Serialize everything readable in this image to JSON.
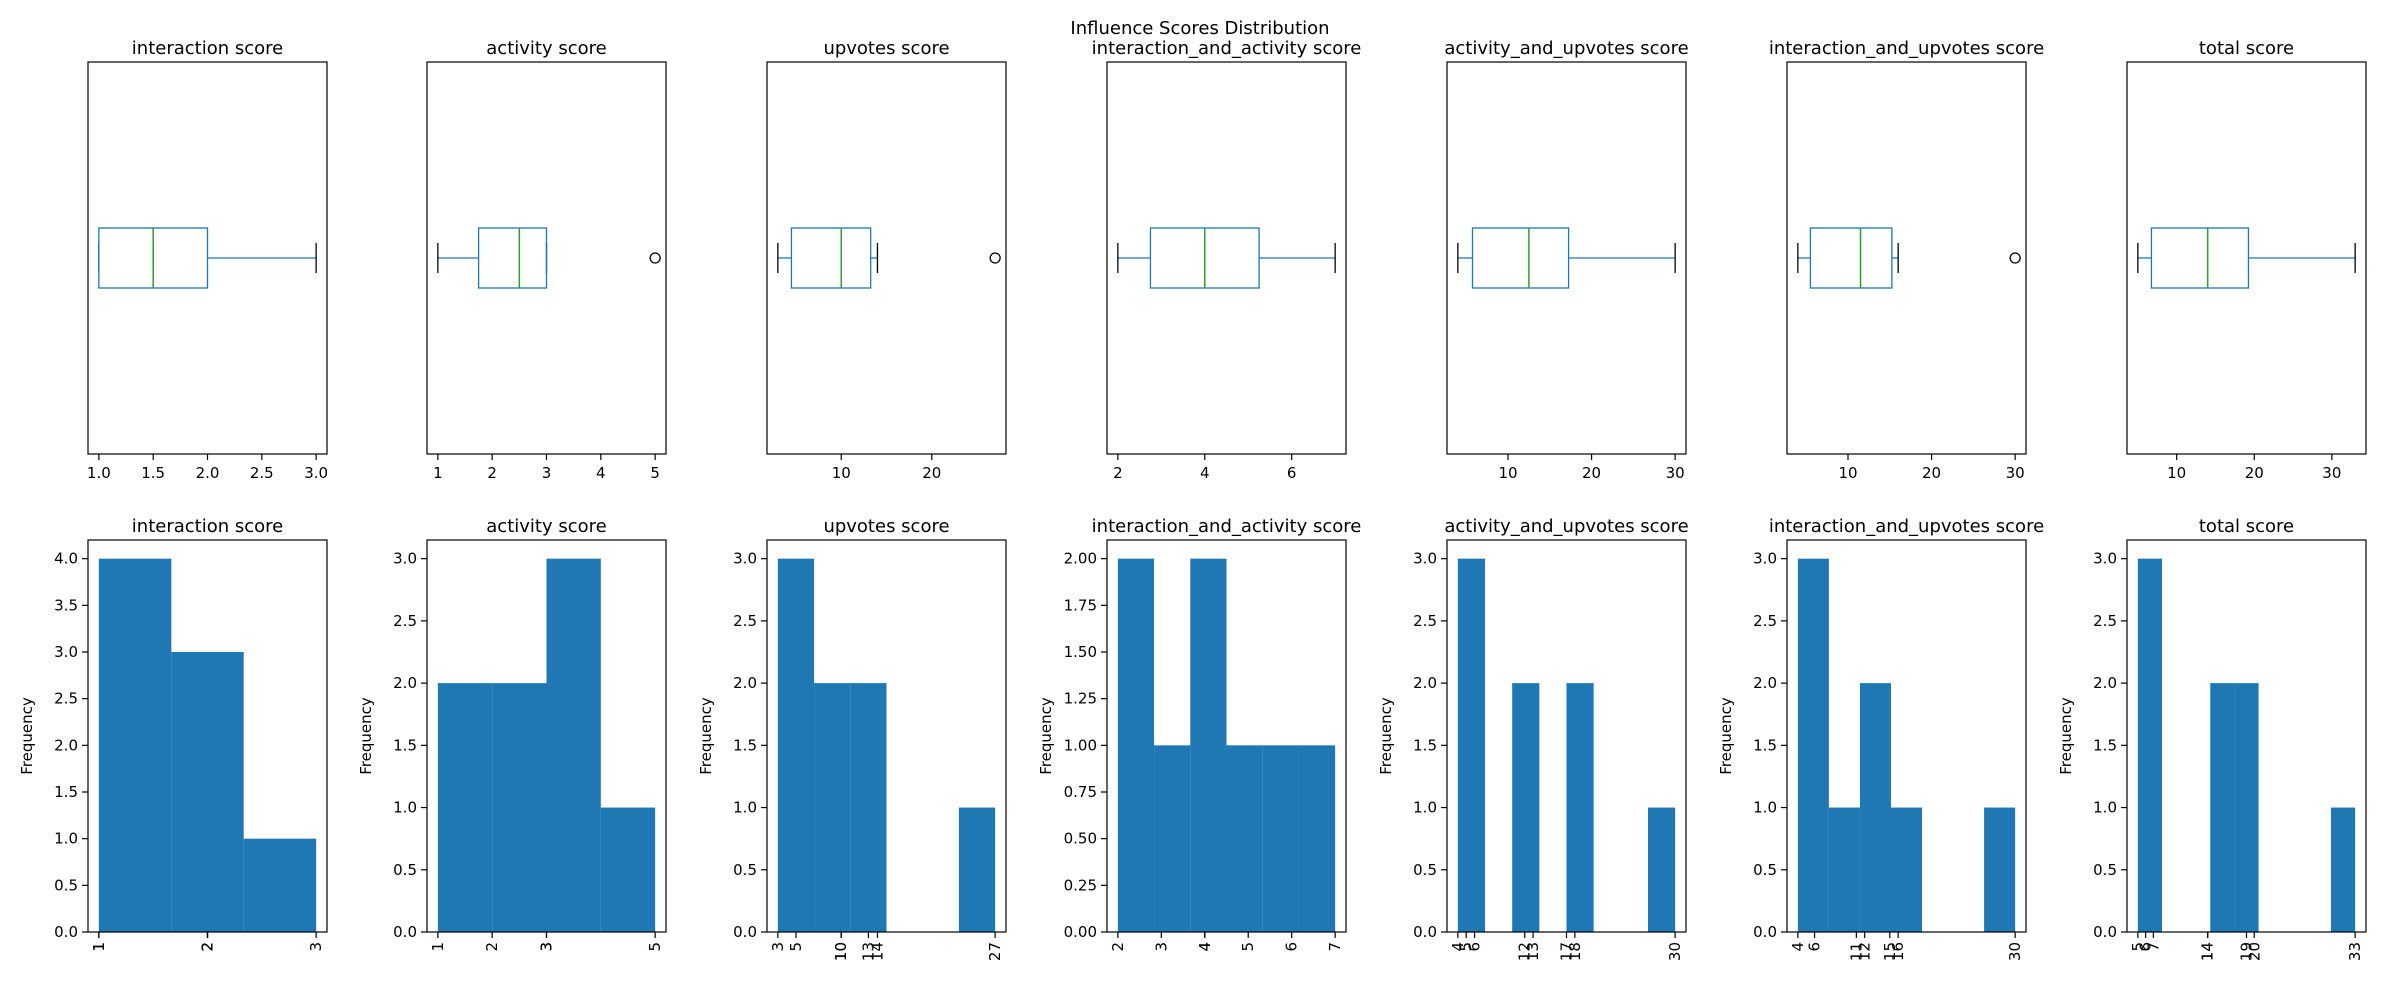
{
  "title": "Influence Scores Distribution",
  "colors": {
    "box": "#1f77b4",
    "median": "#2ca02c",
    "hist": "#1f77b4"
  },
  "chart_data": [
    {
      "type": "box",
      "title": "interaction score",
      "orientation": "horizontal",
      "min": 1,
      "q1": 1,
      "median": 1.5,
      "q3": 2,
      "max": 3,
      "outliers": [],
      "xlim": [
        0.9,
        3.1
      ],
      "xticks": [
        "1.0",
        "1.5",
        "2.0",
        "2.5",
        "3.0"
      ],
      "xtick_values": [
        1.0,
        1.5,
        2.0,
        2.5,
        3.0
      ]
    },
    {
      "type": "box",
      "title": "activity score",
      "orientation": "horizontal",
      "min": 1,
      "q1": 1.75,
      "median": 2.5,
      "q3": 3,
      "max": 3,
      "outliers": [
        5
      ],
      "xlim": [
        0.8,
        5.2
      ],
      "xticks": [
        "1",
        "2",
        "3",
        "4",
        "5"
      ],
      "xtick_values": [
        1,
        2,
        3,
        4,
        5
      ]
    },
    {
      "type": "box",
      "title": "upvotes score",
      "orientation": "horizontal",
      "min": 3,
      "q1": 4.5,
      "median": 10,
      "q3": 13.25,
      "max": 14,
      "outliers": [
        27
      ],
      "xlim": [
        1.8,
        28.2
      ],
      "xticks": [
        "10",
        "20"
      ],
      "xtick_values": [
        10,
        20
      ]
    },
    {
      "type": "box",
      "title": "interaction_and_activity score",
      "orientation": "horizontal",
      "min": 2,
      "q1": 2.75,
      "median": 4,
      "q3": 5.25,
      "max": 7,
      "outliers": [],
      "xlim": [
        1.75,
        7.25
      ],
      "xticks": [
        "2",
        "4",
        "6"
      ],
      "xtick_values": [
        2,
        4,
        6
      ]
    },
    {
      "type": "box",
      "title": "activity_and_upvotes score",
      "orientation": "horizontal",
      "min": 4,
      "q1": 5.75,
      "median": 12.5,
      "q3": 17.25,
      "max": 30,
      "outliers": [],
      "xlim": [
        2.7,
        31.3
      ],
      "xticks": [
        "10",
        "20",
        "30"
      ],
      "xtick_values": [
        10,
        20,
        30
      ]
    },
    {
      "type": "box",
      "title": "interaction_and_upvotes score",
      "orientation": "horizontal",
      "min": 4,
      "q1": 5.5,
      "median": 11.5,
      "q3": 15.25,
      "max": 16,
      "outliers": [
        30
      ],
      "xlim": [
        2.7,
        31.3
      ],
      "xticks": [
        "10",
        "20",
        "30"
      ],
      "xtick_values": [
        10,
        20,
        30
      ]
    },
    {
      "type": "box",
      "title": "total score",
      "orientation": "horizontal",
      "min": 5,
      "q1": 6.75,
      "median": 14,
      "q3": 19.25,
      "max": 33,
      "outliers": [],
      "xlim": [
        3.6,
        34.4
      ],
      "xticks": [
        "10",
        "20",
        "30"
      ],
      "xtick_values": [
        10,
        20,
        30
      ]
    },
    {
      "type": "histogram",
      "title": "interaction score",
      "ylabel": "Frequency",
      "xlim": [
        0.9,
        3.1
      ],
      "ylim": [
        0,
        4.2
      ],
      "yticks": [
        "0.0",
        "0.5",
        "1.0",
        "1.5",
        "2.0",
        "2.5",
        "3.0",
        "3.5",
        "4.0"
      ],
      "ytick_values": [
        0,
        0.5,
        1,
        1.5,
        2,
        2.5,
        3,
        3.5,
        4
      ],
      "bins": [
        {
          "x0": 1,
          "x1": 1.667,
          "count": 4
        },
        {
          "x0": 1.667,
          "x1": 2.333,
          "count": 3
        },
        {
          "x0": 2.333,
          "x1": 3,
          "count": 1
        }
      ],
      "xticks": [
        "1",
        "1",
        "2",
        "2",
        "2",
        "3"
      ],
      "xtick_values": [
        1,
        1,
        2,
        2,
        2,
        3
      ]
    },
    {
      "type": "histogram",
      "title": "activity score",
      "ylabel": "Frequency",
      "xlim": [
        0.8,
        5.2
      ],
      "ylim": [
        0,
        3.15
      ],
      "yticks": [
        "0.0",
        "0.5",
        "1.0",
        "1.5",
        "2.0",
        "2.5",
        "3.0"
      ],
      "ytick_values": [
        0,
        0.5,
        1,
        1.5,
        2,
        2.5,
        3
      ],
      "bins": [
        {
          "x0": 1,
          "x1": 2,
          "count": 2
        },
        {
          "x0": 2,
          "x1": 3,
          "count": 2
        },
        {
          "x0": 3,
          "x1": 4,
          "count": 3
        },
        {
          "x0": 4,
          "x1": 5,
          "count": 1
        }
      ],
      "xticks": [
        "1",
        "2",
        "3",
        "3",
        "5"
      ],
      "xtick_values": [
        1,
        2,
        3,
        3,
        5
      ]
    },
    {
      "type": "histogram",
      "title": "upvotes score",
      "ylabel": "Frequency",
      "xlim": [
        1.8,
        28.2
      ],
      "ylim": [
        0,
        3.15
      ],
      "yticks": [
        "0.0",
        "0.5",
        "1.0",
        "1.5",
        "2.0",
        "2.5",
        "3.0"
      ],
      "ytick_values": [
        0,
        0.5,
        1,
        1.5,
        2,
        2.5,
        3
      ],
      "bins": [
        {
          "x0": 3,
          "x1": 7,
          "count": 3
        },
        {
          "x0": 7,
          "x1": 11,
          "count": 2
        },
        {
          "x0": 11,
          "x1": 15,
          "count": 2
        },
        {
          "x0": 15,
          "x1": 19,
          "count": 0
        },
        {
          "x0": 19,
          "x1": 23,
          "count": 0
        },
        {
          "x0": 23,
          "x1": 27,
          "count": 1
        }
      ],
      "xticks": [
        "3",
        "5",
        "10",
        "10",
        "13",
        "14",
        "27"
      ],
      "xtick_values": [
        3,
        5,
        10,
        10,
        13,
        14,
        27
      ]
    },
    {
      "type": "histogram",
      "title": "interaction_and_activity score",
      "ylabel": "Frequency",
      "xlim": [
        1.75,
        7.25
      ],
      "ylim": [
        0,
        2.1
      ],
      "yticks": [
        "0.00",
        "0.25",
        "0.50",
        "0.75",
        "1.00",
        "1.25",
        "1.50",
        "1.75",
        "2.00"
      ],
      "ytick_values": [
        0,
        0.25,
        0.5,
        0.75,
        1,
        1.25,
        1.5,
        1.75,
        2
      ],
      "bins": [
        {
          "x0": 2,
          "x1": 2.833,
          "count": 2
        },
        {
          "x0": 2.833,
          "x1": 3.667,
          "count": 1
        },
        {
          "x0": 3.667,
          "x1": 4.5,
          "count": 2
        },
        {
          "x0": 4.5,
          "x1": 5.333,
          "count": 1
        },
        {
          "x0": 5.333,
          "x1": 6.167,
          "count": 1
        },
        {
          "x0": 6.167,
          "x1": 7,
          "count": 1
        }
      ],
      "xticks": [
        "2",
        "3",
        "4",
        "4",
        "5",
        "6",
        "7"
      ],
      "xtick_values": [
        2,
        3,
        4,
        4,
        5,
        6,
        7
      ]
    },
    {
      "type": "histogram",
      "title": "activity_and_upvotes score",
      "ylabel": "Frequency",
      "xlim": [
        2.7,
        31.3
      ],
      "ylim": [
        0,
        3.15
      ],
      "yticks": [
        "0.0",
        "0.5",
        "1.0",
        "1.5",
        "2.0",
        "2.5",
        "3.0"
      ],
      "ytick_values": [
        0,
        0.5,
        1,
        1.5,
        2,
        2.5,
        3
      ],
      "bins": [
        {
          "x0": 4,
          "x1": 7.25,
          "count": 3
        },
        {
          "x0": 7.25,
          "x1": 10.5,
          "count": 0
        },
        {
          "x0": 10.5,
          "x1": 13.75,
          "count": 2
        },
        {
          "x0": 13.75,
          "x1": 17,
          "count": 0
        },
        {
          "x0": 17,
          "x1": 20.25,
          "count": 2
        },
        {
          "x0": 20.25,
          "x1": 23.5,
          "count": 0
        },
        {
          "x0": 23.5,
          "x1": 26.75,
          "count": 0
        },
        {
          "x0": 26.75,
          "x1": 30,
          "count": 1
        }
      ],
      "xticks": [
        "4",
        "5",
        "6",
        "12",
        "13",
        "17",
        "18",
        "30"
      ],
      "xtick_values": [
        4,
        5,
        6,
        12,
        13,
        17,
        18,
        30
      ]
    },
    {
      "type": "histogram",
      "title": "interaction_and_upvotes score",
      "ylabel": "Frequency",
      "xlim": [
        2.7,
        31.3
      ],
      "ylim": [
        0,
        3.15
      ],
      "yticks": [
        "0.0",
        "0.5",
        "1.0",
        "1.5",
        "2.0",
        "2.5",
        "3.0"
      ],
      "ytick_values": [
        0,
        0.5,
        1,
        1.5,
        2,
        2.5,
        3
      ],
      "bins": [
        {
          "x0": 4,
          "x1": 7.714,
          "count": 3
        },
        {
          "x0": 7.714,
          "x1": 11.429,
          "count": 1
        },
        {
          "x0": 11.429,
          "x1": 15.143,
          "count": 2
        },
        {
          "x0": 15.143,
          "x1": 18.857,
          "count": 1
        },
        {
          "x0": 18.857,
          "x1": 22.571,
          "count": 0
        },
        {
          "x0": 22.571,
          "x1": 26.286,
          "count": 0
        },
        {
          "x0": 26.286,
          "x1": 30,
          "count": 1
        }
      ],
      "xticks": [
        "4",
        "6",
        "11",
        "12",
        "15",
        "16",
        "30"
      ],
      "xtick_values": [
        4,
        6,
        11,
        12,
        15,
        16,
        30
      ]
    },
    {
      "type": "histogram",
      "title": "total score",
      "ylabel": "Frequency",
      "xlim": [
        3.6,
        34.4
      ],
      "ylim": [
        0,
        3.15
      ],
      "yticks": [
        "0.0",
        "0.5",
        "1.0",
        "1.5",
        "2.0",
        "2.5",
        "3.0"
      ],
      "ytick_values": [
        0,
        0.5,
        1,
        1.5,
        2,
        2.5,
        3
      ],
      "bins": [
        {
          "x0": 5,
          "x1": 8.111,
          "count": 3
        },
        {
          "x0": 8.111,
          "x1": 11.222,
          "count": 0
        },
        {
          "x0": 11.222,
          "x1": 14.333,
          "count": 0
        },
        {
          "x0": 14.333,
          "x1": 17.444,
          "count": 2
        },
        {
          "x0": 17.444,
          "x1": 20.556,
          "count": 2
        },
        {
          "x0": 20.556,
          "x1": 23.667,
          "count": 0
        },
        {
          "x0": 23.667,
          "x1": 26.778,
          "count": 0
        },
        {
          "x0": 26.778,
          "x1": 29.889,
          "count": 0
        },
        {
          "x0": 29.889,
          "x1": 33,
          "count": 1
        }
      ],
      "xticks": [
        "5",
        "6",
        "7",
        "14",
        "14",
        "19",
        "20",
        "33"
      ],
      "xtick_values": [
        5,
        6,
        7,
        14,
        14,
        19,
        20,
        33
      ]
    }
  ]
}
